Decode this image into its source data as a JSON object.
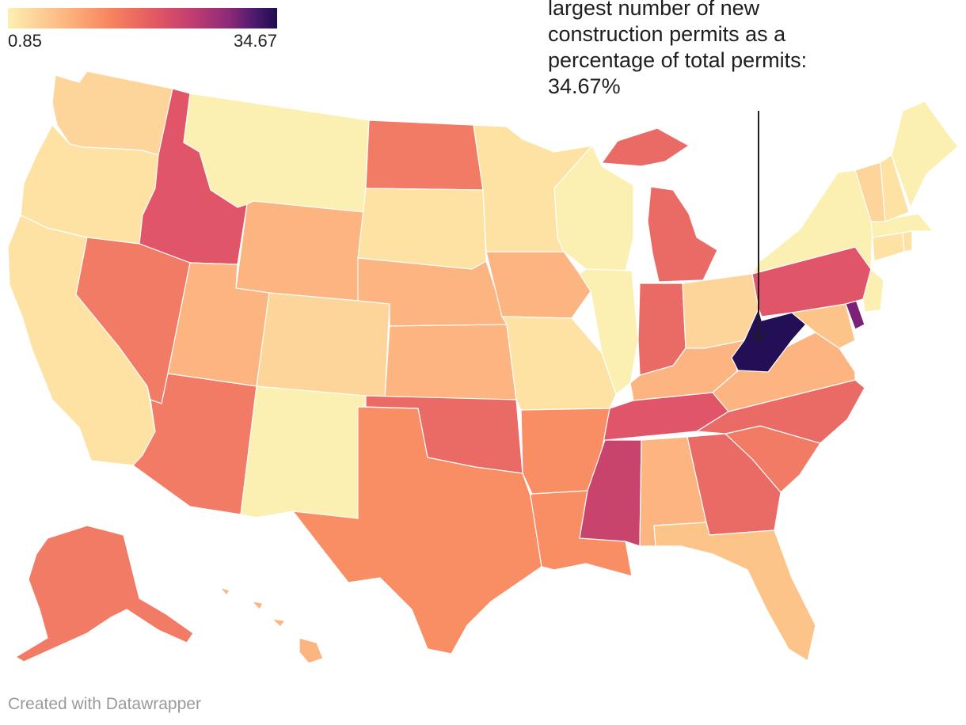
{
  "legend": {
    "min_label": "0.85",
    "max_label": "34.67",
    "min_value": 0.85,
    "max_value": 34.67
  },
  "annotation": {
    "text": "largest number of new construction permits as a percentage of total permits: 34.67%"
  },
  "footer": {
    "credit": "Created with Datawrapper"
  },
  "colors": {
    "c1": "#fcefb2",
    "c2": "#fde2a4",
    "c3": "#fdd49a",
    "c4": "#fdc48a",
    "c5": "#fcb480",
    "c6": "#f98e65",
    "c7": "#f27b66",
    "c8": "#ea6a66",
    "c9": "#e05668",
    "c10": "#c9446d",
    "c11": "#7b2178",
    "c12": "#230f55"
  },
  "states": [
    {
      "name": "Washington",
      "color": "c3"
    },
    {
      "name": "Oregon",
      "color": "c2"
    },
    {
      "name": "California",
      "color": "c2"
    },
    {
      "name": "Idaho",
      "color": "c9"
    },
    {
      "name": "Nevada",
      "color": "c7"
    },
    {
      "name": "Montana",
      "color": "c1"
    },
    {
      "name": "Wyoming",
      "color": "c5"
    },
    {
      "name": "Utah",
      "color": "c5"
    },
    {
      "name": "Arizona",
      "color": "c7"
    },
    {
      "name": "Colorado",
      "color": "c3"
    },
    {
      "name": "New Mexico",
      "color": "c1"
    },
    {
      "name": "North Dakota",
      "color": "c7"
    },
    {
      "name": "South Dakota",
      "color": "c2"
    },
    {
      "name": "Nebraska",
      "color": "c5"
    },
    {
      "name": "Kansas",
      "color": "c5"
    },
    {
      "name": "Oklahoma",
      "color": "c8"
    },
    {
      "name": "Texas",
      "color": "c6"
    },
    {
      "name": "Minnesota",
      "color": "c2"
    },
    {
      "name": "Iowa",
      "color": "c5"
    },
    {
      "name": "Missouri",
      "color": "c2"
    },
    {
      "name": "Arkansas",
      "color": "c6"
    },
    {
      "name": "Louisiana",
      "color": "c6"
    },
    {
      "name": "Wisconsin",
      "color": "c1"
    },
    {
      "name": "Illinois",
      "color": "c1"
    },
    {
      "name": "Michigan",
      "color": "c8"
    },
    {
      "name": "Indiana",
      "color": "c8"
    },
    {
      "name": "Ohio",
      "color": "c3"
    },
    {
      "name": "Kentucky",
      "color": "c5"
    },
    {
      "name": "Tennessee",
      "color": "c9"
    },
    {
      "name": "Mississippi",
      "color": "c10"
    },
    {
      "name": "Alabama",
      "color": "c5"
    },
    {
      "name": "Georgia",
      "color": "c8"
    },
    {
      "name": "Florida",
      "color": "c4"
    },
    {
      "name": "South Carolina",
      "color": "c7"
    },
    {
      "name": "North Carolina",
      "color": "c8"
    },
    {
      "name": "Virginia",
      "color": "c5"
    },
    {
      "name": "West Virginia",
      "color": "c12"
    },
    {
      "name": "Maryland",
      "color": "c4"
    },
    {
      "name": "Delaware",
      "color": "c11"
    },
    {
      "name": "Pennsylvania",
      "color": "c9"
    },
    {
      "name": "New Jersey",
      "color": "c1"
    },
    {
      "name": "New York",
      "color": "c1"
    },
    {
      "name": "Connecticut",
      "color": "c2"
    },
    {
      "name": "Rhode Island",
      "color": "c2"
    },
    {
      "name": "Massachusetts",
      "color": "c1"
    },
    {
      "name": "Vermont",
      "color": "c3"
    },
    {
      "name": "New Hampshire",
      "color": "c2"
    },
    {
      "name": "Maine",
      "color": "c1"
    },
    {
      "name": "Alaska",
      "color": "c7"
    },
    {
      "name": "Hawaii",
      "color": "c5"
    }
  ]
}
